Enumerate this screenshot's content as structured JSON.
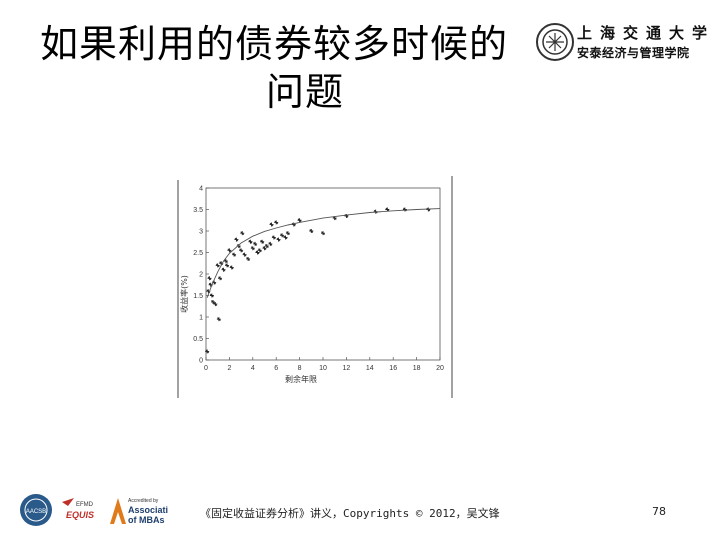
{
  "slide": {
    "title_line1": "如果利用的债券较多时候的",
    "title_line2": "问题",
    "citation": "《固定收益证券分析》讲义，Copyrights © 2012，吴文锋",
    "page_number": "78"
  },
  "logo": {
    "name_line1": "上海交通大学",
    "name_line2": "安泰经济与管理学院"
  },
  "accreditation": {
    "aacsb": "AACSB",
    "efmd": "EFMD",
    "equis": "EQUIS",
    "amba_line1": "Accredited by",
    "amba_line2": "Association",
    "amba_line3": "of MBAs"
  },
  "chart_data": {
    "type": "scatter",
    "xlabel": "剩余年限",
    "ylabel": "收益率(%)",
    "xlim": [
      0,
      20
    ],
    "ylim": [
      0,
      4
    ],
    "xticks": [
      "0",
      "2",
      "4",
      "6",
      "8",
      "10",
      "12",
      "14",
      "16",
      "18",
      "20"
    ],
    "yticks": [
      "0",
      "0.5",
      "1",
      "1.5",
      "2",
      "2.5",
      "3",
      "3.5",
      "4"
    ],
    "grid": false,
    "series": [
      {
        "points": [
          [
            0.1,
            0.2
          ],
          [
            0.2,
            1.6
          ],
          [
            0.3,
            1.9
          ],
          [
            0.4,
            1.75
          ],
          [
            0.5,
            1.5
          ],
          [
            0.6,
            1.35
          ],
          [
            0.7,
            1.8
          ],
          [
            0.8,
            1.3
          ],
          [
            1.0,
            2.2
          ],
          [
            1.1,
            0.95
          ],
          [
            1.2,
            1.9
          ],
          [
            1.3,
            2.25
          ],
          [
            1.5,
            2.1
          ],
          [
            1.7,
            2.3
          ],
          [
            1.8,
            2.2
          ],
          [
            2.0,
            2.55
          ],
          [
            2.2,
            2.15
          ],
          [
            2.4,
            2.45
          ],
          [
            2.6,
            2.8
          ],
          [
            2.8,
            2.65
          ],
          [
            3.0,
            2.55
          ],
          [
            3.1,
            2.95
          ],
          [
            3.3,
            2.45
          ],
          [
            3.6,
            2.35
          ],
          [
            3.8,
            2.75
          ],
          [
            4.0,
            2.6
          ],
          [
            4.2,
            2.7
          ],
          [
            4.4,
            2.5
          ],
          [
            4.6,
            2.55
          ],
          [
            4.8,
            2.75
          ],
          [
            5.0,
            2.6
          ],
          [
            5.2,
            2.65
          ],
          [
            5.5,
            2.7
          ],
          [
            5.6,
            3.15
          ],
          [
            5.8,
            2.85
          ],
          [
            6.0,
            3.2
          ],
          [
            6.2,
            2.8
          ],
          [
            6.5,
            2.9
          ],
          [
            6.8,
            2.85
          ],
          [
            7.0,
            2.95
          ],
          [
            7.5,
            3.15
          ],
          [
            8.0,
            3.25
          ],
          [
            9.0,
            3.0
          ],
          [
            10.0,
            2.95
          ],
          [
            11.0,
            3.3
          ],
          [
            12.0,
            3.35
          ],
          [
            14.5,
            3.45
          ],
          [
            15.5,
            3.5
          ],
          [
            17.0,
            3.5
          ],
          [
            19.0,
            3.5
          ]
        ]
      },
      {
        "type": "line",
        "points": [
          [
            0.1,
            1.45
          ],
          [
            0.5,
            1.75
          ],
          [
            1,
            2.05
          ],
          [
            1.5,
            2.3
          ],
          [
            2,
            2.48
          ],
          [
            3,
            2.72
          ],
          [
            4,
            2.88
          ],
          [
            5,
            2.99
          ],
          [
            6,
            3.07
          ],
          [
            7,
            3.14
          ],
          [
            8,
            3.2
          ],
          [
            10,
            3.3
          ],
          [
            12,
            3.37
          ],
          [
            14,
            3.43
          ],
          [
            16,
            3.47
          ],
          [
            18,
            3.5
          ],
          [
            20,
            3.52
          ]
        ]
      }
    ]
  }
}
